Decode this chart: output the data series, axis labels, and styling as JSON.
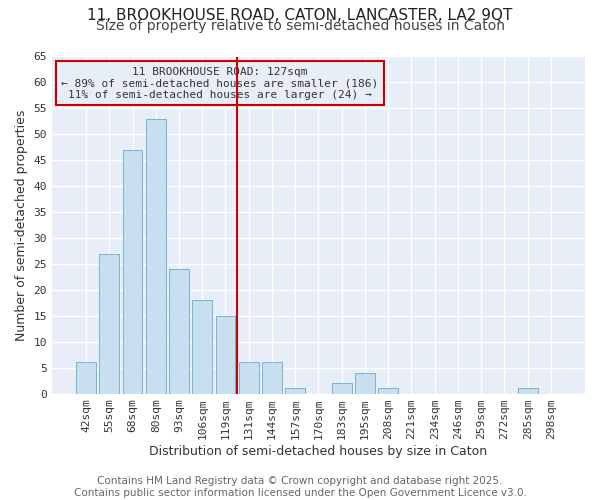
{
  "title_line1": "11, BROOKHOUSE ROAD, CATON, LANCASTER, LA2 9QT",
  "title_line2": "Size of property relative to semi-detached houses in Caton",
  "xlabel": "Distribution of semi-detached houses by size in Caton",
  "ylabel": "Number of semi-detached properties",
  "bar_labels": [
    "42sqm",
    "55sqm",
    "68sqm",
    "80sqm",
    "93sqm",
    "106sqm",
    "119sqm",
    "131sqm",
    "144sqm",
    "157sqm",
    "170sqm",
    "183sqm",
    "195sqm",
    "208sqm",
    "221sqm",
    "234sqm",
    "246sqm",
    "259sqm",
    "272sqm",
    "285sqm",
    "298sqm"
  ],
  "bar_values": [
    6,
    27,
    47,
    53,
    24,
    18,
    15,
    6,
    6,
    1,
    0,
    2,
    4,
    1,
    0,
    0,
    0,
    0,
    0,
    1,
    0
  ],
  "bar_color": "#c8dff0",
  "bar_edge_color": "#7ab4d4",
  "vline_color": "#cc0000",
  "annotation_title": "11 BROOKHOUSE ROAD: 127sqm",
  "annotation_line1": "← 89% of semi-detached houses are smaller (186)",
  "annotation_line2": "11% of semi-detached houses are larger (24) →",
  "ylim_max": 65,
  "yticks": [
    0,
    5,
    10,
    15,
    20,
    25,
    30,
    35,
    40,
    45,
    50,
    55,
    60,
    65
  ],
  "footer_line1": "Contains HM Land Registry data © Crown copyright and database right 2025.",
  "footer_line2": "Contains public sector information licensed under the Open Government Licence v3.0.",
  "bg_color": "#ffffff",
  "plot_bg_color": "#e8eef8",
  "grid_color": "#ffffff",
  "title_fontsize": 11,
  "subtitle_fontsize": 10,
  "axis_label_fontsize": 9,
  "tick_fontsize": 8,
  "annotation_fontsize": 8,
  "footer_fontsize": 7.5
}
